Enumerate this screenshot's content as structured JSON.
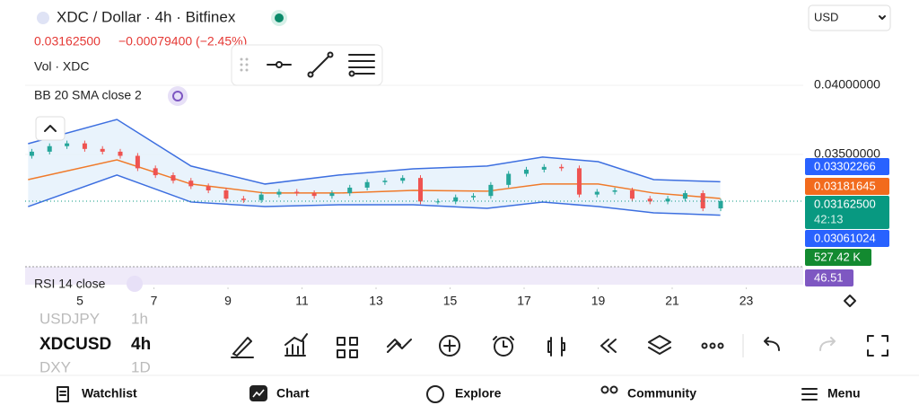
{
  "header": {
    "symbol": "XDC / Dollar · 4h · Bitfinex",
    "price": "0.03162500",
    "change": "−0.00079400 (−2.45%)",
    "currency": "USD"
  },
  "indicators": {
    "volume": "Vol · XDC",
    "bollinger": "BB 20 SMA close 2",
    "rsi": "RSI 14 close"
  },
  "price_labels": {
    "upper": "0.03302266",
    "middle": "0.03181645",
    "last": "0.03162500",
    "countdown": "42:13",
    "lower": "0.03061024",
    "volume": "527.42 K",
    "rsi": "46.51"
  },
  "chart_data": {
    "type": "candlestick",
    "up_color": "#26a69a",
    "down_color": "#ef5350",
    "x": [
      3.7,
      4.18,
      4.65,
      5.13,
      5.61,
      6.09,
      6.56,
      7.04,
      7.52,
      8.0,
      8.47,
      8.95,
      9.42,
      9.9,
      10.38,
      10.86,
      11.33,
      11.81,
      12.29,
      12.76,
      13.24,
      13.72,
      14.2,
      14.67,
      15.15,
      15.63,
      16.1,
      16.58,
      17.06,
      17.54,
      18.01,
      18.49,
      18.97,
      19.45,
      19.92,
      20.4,
      20.88,
      21.35,
      21.83,
      22.31
    ],
    "open": [
      0.0349,
      0.0352,
      0.0356,
      0.0358,
      0.0354,
      0.0352,
      0.0349,
      0.034,
      0.0335,
      0.0331,
      0.0327,
      0.0324,
      0.0318,
      0.0317,
      0.0321,
      0.0323,
      0.0322,
      0.032,
      0.0322,
      0.0326,
      0.033,
      0.0331,
      0.0333,
      0.0316,
      0.0316,
      0.0319,
      0.032,
      0.0328,
      0.0336,
      0.0339,
      0.0341,
      0.034,
      0.0321,
      0.0323,
      0.0324,
      0.0318,
      0.0316,
      0.0318,
      0.0322,
      0.0311
    ],
    "high": [
      0.0354,
      0.0358,
      0.036,
      0.036,
      0.0356,
      0.0354,
      0.0351,
      0.0342,
      0.0337,
      0.0333,
      0.0329,
      0.0326,
      0.032,
      0.0323,
      0.0325,
      0.0325,
      0.0324,
      0.0324,
      0.0328,
      0.0332,
      0.0333,
      0.0335,
      0.0335,
      0.0318,
      0.0321,
      0.0322,
      0.033,
      0.0338,
      0.0341,
      0.0343,
      0.0343,
      0.0342,
      0.0325,
      0.0326,
      0.0326,
      0.032,
      0.032,
      0.0324,
      0.0324,
      0.0318
    ],
    "low": [
      0.0347,
      0.035,
      0.0354,
      0.0352,
      0.035,
      0.0347,
      0.0338,
      0.0333,
      0.0329,
      0.0325,
      0.0322,
      0.0316,
      0.0315,
      0.0315,
      0.0319,
      0.032,
      0.0318,
      0.0318,
      0.032,
      0.0324,
      0.0328,
      0.0329,
      0.0314,
      0.0314,
      0.0314,
      0.0317,
      0.0318,
      0.0326,
      0.0334,
      0.0337,
      0.0338,
      0.0319,
      0.0319,
      0.0321,
      0.0316,
      0.0314,
      0.0314,
      0.0316,
      0.0309,
      0.0309
    ],
    "close": [
      0.0352,
      0.0356,
      0.0358,
      0.0354,
      0.0352,
      0.0349,
      0.034,
      0.0335,
      0.0331,
      0.0327,
      0.0324,
      0.0318,
      0.0317,
      0.0321,
      0.0323,
      0.0322,
      0.032,
      0.0322,
      0.0326,
      0.033,
      0.0331,
      0.0333,
      0.0316,
      0.0316,
      0.0319,
      0.032,
      0.0328,
      0.0336,
      0.0339,
      0.0341,
      0.034,
      0.0321,
      0.0323,
      0.0324,
      0.0318,
      0.0316,
      0.0318,
      0.0322,
      0.0311,
      0.031625
    ],
    "bands": {
      "x": [
        3.6,
        6,
        8,
        10,
        12,
        14,
        16,
        17.5,
        19,
        20.5,
        22.3
      ],
      "upper": [
        0.03578,
        0.03753,
        0.03416,
        0.03286,
        0.03351,
        0.03396,
        0.03416,
        0.03481,
        0.03448,
        0.03318,
        0.03302266
      ],
      "middle": [
        0.03318,
        0.03461,
        0.03286,
        0.03221,
        0.03221,
        0.0324,
        0.03234,
        0.03286,
        0.03286,
        0.03221,
        0.03181645
      ],
      "lower": [
        0.03123,
        0.03351,
        0.03156,
        0.03123,
        0.03136,
        0.03136,
        0.0311,
        0.03156,
        0.03123,
        0.03078,
        0.03061024
      ],
      "upper_color": "#3d6fe0",
      "middle_color": "#f07a2a",
      "lower_color": "#3d6fe0"
    },
    "xlim": [
      3.52,
      24.54
    ],
    "xticks": [
      5,
      7,
      9,
      11,
      13,
      15,
      17,
      19,
      21,
      23
    ],
    "ylim": [
      0.02688,
      0.04617
    ],
    "yticks": [
      {
        "value": 0.035,
        "label": "0.03500000"
      },
      {
        "value": 0.04,
        "label": "0.04000000"
      }
    ]
  },
  "watchlist": {
    "items": [
      "USDJPY",
      "XDCUSD",
      "DXY"
    ],
    "intervals": [
      "1h",
      "4h",
      "1D"
    ]
  },
  "nav": [
    "Watchlist",
    "Chart",
    "Explore",
    "Community",
    "Menu"
  ]
}
